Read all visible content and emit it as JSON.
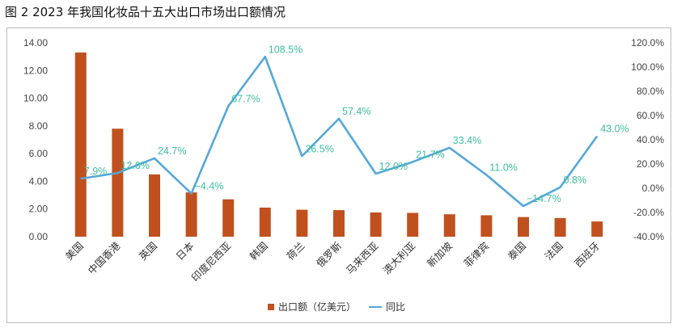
{
  "figure_title": "图 2  2023 年我国化妆品十五大出口市场出口额情况",
  "colors": {
    "bar": "#C0511F",
    "line": "#55A8D8",
    "label": "#3DBF9F"
  },
  "chart_data": {
    "type": "bar",
    "categories": [
      "美国",
      "中国香港",
      "英国",
      "日本",
      "印度尼西亚",
      "韩国",
      "荷兰",
      "俄罗斯",
      "马来西亚",
      "澳大利亚",
      "新加坡",
      "菲律宾",
      "泰国",
      "法国",
      "西班牙"
    ],
    "series": [
      {
        "name": "出口额（亿美元）",
        "type": "bar",
        "axis": "left",
        "values": [
          13.3,
          7.8,
          4.5,
          3.2,
          2.7,
          2.1,
          1.95,
          1.92,
          1.75,
          1.72,
          1.62,
          1.55,
          1.42,
          1.35,
          1.1
        ]
      },
      {
        "name": "同比",
        "type": "line",
        "axis": "right",
        "values": [
          7.9,
          12.6,
          24.7,
          -4.4,
          67.7,
          108.5,
          26.5,
          57.4,
          12.0,
          21.7,
          33.4,
          11.0,
          -14.7,
          0.8,
          43.0
        ],
        "labels": [
          "7.9%",
          "12.6%",
          "24.7%",
          "−4.4%",
          "67.7%",
          "108.5%",
          "26.5%",
          "57.4%",
          "12.0%",
          "21.7%",
          "33.4%",
          "11.0%",
          "−14.7%",
          "0.8%",
          "43.0%"
        ]
      }
    ],
    "left_axis": {
      "ylim": [
        0,
        14
      ],
      "ticks": [
        "0.00",
        "2.00",
        "4.00",
        "6.00",
        "8.00",
        "10.00",
        "12.00",
        "14.00"
      ]
    },
    "right_axis": {
      "ylim": [
        -40,
        120
      ],
      "ticks": [
        "-40.0%",
        "-20.0%",
        "0.0%",
        "20.0%",
        "40.0%",
        "60.0%",
        "80.0%",
        "100.0%",
        "120.0%"
      ]
    },
    "grid": false,
    "legend_position": "bottom"
  }
}
